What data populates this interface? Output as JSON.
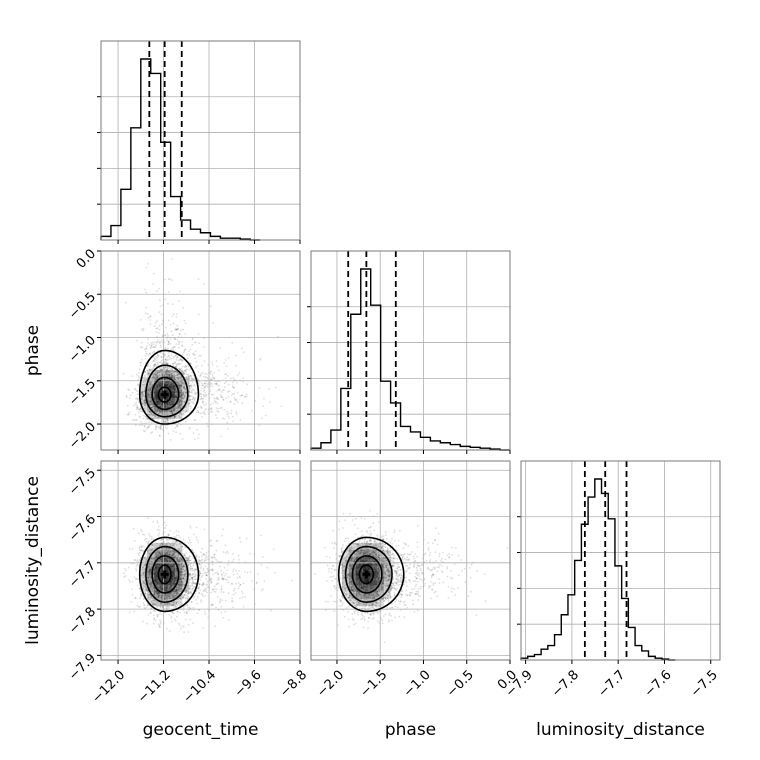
{
  "chart_data": {
    "type": "corner",
    "parameters": [
      {
        "name": "geocent_time",
        "label": "geocent_time",
        "range": [
          -12.3,
          -8.8
        ],
        "ticks": [
          -12.0,
          -11.2,
          -10.4,
          -9.6,
          -8.8
        ],
        "tick_labels": [
          "−12.0",
          "−11.2",
          "−10.4",
          "−9.6",
          "−8.8"
        ],
        "quantiles": [
          -11.45,
          -11.18,
          -10.88
        ],
        "peak": -11.18,
        "sigma": 0.22,
        "histogram": {
          "bin_edges": [
            -12.3,
            -12.125,
            -11.95,
            -11.775,
            -11.6,
            -11.425,
            -11.25,
            -11.075,
            -10.9,
            -10.725,
            -10.55,
            -10.375,
            -10.2,
            -10.025,
            -9.85,
            -9.675,
            -9.5
          ],
          "counts": [
            2,
            8,
            28,
            62,
            100,
            92,
            54,
            24,
            11,
            6,
            4,
            2,
            1,
            1,
            0.5,
            0
          ]
        }
      },
      {
        "name": "phase",
        "label": "phase",
        "range": [
          -2.3,
          0.0
        ],
        "ticks": [
          -2.0,
          -1.5,
          -1.0,
          -0.5,
          0.0
        ],
        "tick_labels": [
          "−2.0",
          "−1.5",
          "−1.0",
          "−0.5",
          "0.0"
        ],
        "quantiles": [
          -1.87,
          -1.66,
          -1.32
        ],
        "peak": -1.66,
        "sigma": 0.16,
        "histogram": {
          "bin_edges": [
            -2.3,
            -2.185,
            -2.07,
            -1.955,
            -1.84,
            -1.725,
            -1.61,
            -1.495,
            -1.38,
            -1.265,
            -1.15,
            -1.035,
            -0.92,
            -0.805,
            -0.69,
            -0.575,
            -0.46,
            -0.345,
            -0.23,
            -0.115,
            0.0
          ],
          "counts": [
            1,
            4,
            11,
            34,
            75,
            100,
            80,
            38,
            26,
            13,
            10,
            7,
            5,
            4,
            3,
            2,
            1.5,
            1,
            0.5,
            0
          ]
        }
      },
      {
        "name": "luminosity_distance",
        "label": "luminosity_distance",
        "range": [
          -7.91,
          -7.48
        ],
        "ticks": [
          -7.9,
          -7.8,
          -7.7,
          -7.6,
          -7.5
        ],
        "tick_labels": [
          "−7.9",
          "−7.8",
          "−7.7",
          "−7.6",
          "−7.5"
        ],
        "quantiles": [
          -7.772,
          -7.728,
          -7.682
        ],
        "peak": -7.725,
        "sigma": 0.04,
        "histogram": {
          "bin_edges": [
            -7.91,
            -7.8955,
            -7.881,
            -7.8665,
            -7.852,
            -7.8375,
            -7.823,
            -7.8085,
            -7.794,
            -7.7795,
            -7.765,
            -7.7505,
            -7.736,
            -7.7215,
            -7.707,
            -7.6925,
            -7.678,
            -7.6635,
            -7.649,
            -7.6345,
            -7.62,
            -7.6055,
            -7.591,
            -7.5765
          ],
          "counts": [
            1,
            2,
            3,
            6,
            8,
            14,
            25,
            36,
            55,
            75,
            90,
            100,
            92,
            78,
            52,
            34,
            18,
            8,
            5,
            2,
            1,
            0.5,
            0
          ]
        }
      }
    ],
    "scatter": [
      {
        "x": "geocent_time",
        "y": "phase",
        "center": [
          -11.18,
          -1.66
        ],
        "sigma": [
          0.22,
          0.17
        ],
        "correlation": 0.25
      },
      {
        "x": "geocent_time",
        "y": "luminosity_distance",
        "center": [
          -11.18,
          -7.725
        ],
        "sigma": [
          0.22,
          0.04
        ],
        "correlation": 0.0
      },
      {
        "x": "phase",
        "y": "luminosity_distance",
        "center": [
          -1.66,
          -7.725
        ],
        "sigma": [
          0.16,
          0.04
        ],
        "correlation": 0.0
      }
    ],
    "grid": true,
    "legend": "none",
    "colors": {
      "line": "#000000",
      "points": "#000000",
      "grid": "#b0b0b0"
    }
  }
}
